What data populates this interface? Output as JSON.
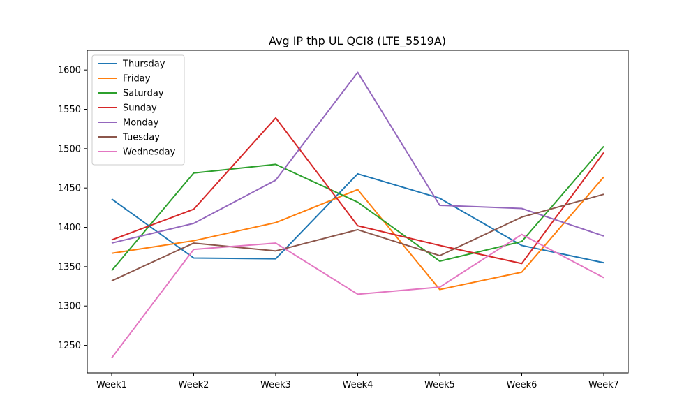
{
  "chart_data": {
    "type": "line",
    "title": "Avg IP thp UL QCI8 (LTE_5519A)",
    "xlabel": "",
    "ylabel": "",
    "categories": [
      "Week1",
      "Week2",
      "Week3",
      "Week4",
      "Week5",
      "Week6",
      "Week7"
    ],
    "ylim": [
      1215,
      1625
    ],
    "yticks": [
      1250,
      1300,
      1350,
      1400,
      1450,
      1500,
      1550,
      1600
    ],
    "grid": false,
    "legend_position": "top-left",
    "series": [
      {
        "name": "Thursday",
        "color": "#1f77b4",
        "values": [
          1436,
          1361,
          1360,
          1468,
          1437,
          1377,
          1355
        ]
      },
      {
        "name": "Friday",
        "color": "#ff7f0e",
        "values": [
          1367,
          1383,
          1406,
          1448,
          1321,
          1343,
          1464
        ]
      },
      {
        "name": "Saturday",
        "color": "#2ca02c",
        "values": [
          1345,
          1469,
          1480,
          1432,
          1357,
          1382,
          1503
        ]
      },
      {
        "name": "Sunday",
        "color": "#d62728",
        "values": [
          1384,
          1423,
          1539,
          1402,
          1377,
          1354,
          1495
        ]
      },
      {
        "name": "Monday",
        "color": "#9467bd",
        "values": [
          1380,
          1405,
          1460,
          1597,
          1428,
          1424,
          1389
        ]
      },
      {
        "name": "Tuesday",
        "color": "#8c564b",
        "values": [
          1332,
          1380,
          1370,
          1397,
          1364,
          1413,
          1442
        ]
      },
      {
        "name": "Wednesday",
        "color": "#e377c2",
        "values": [
          1234,
          1372,
          1380,
          1315,
          1324,
          1391,
          1336
        ]
      }
    ]
  }
}
